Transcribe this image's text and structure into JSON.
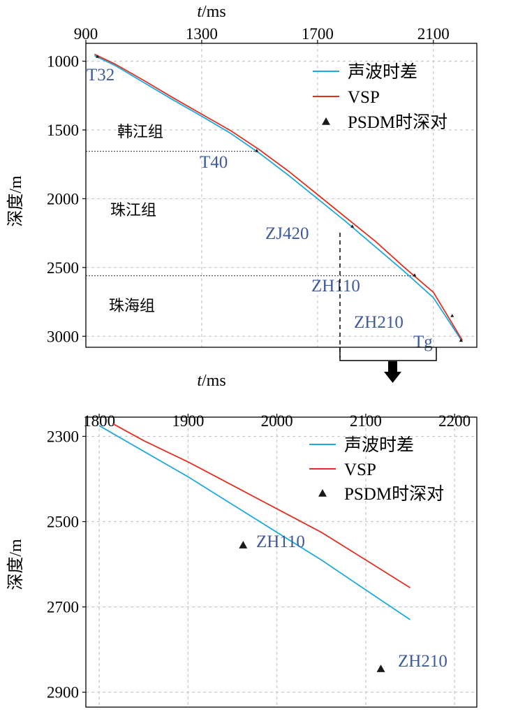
{
  "colors": {
    "sonic": "#1fa8e0",
    "vsp": "#e03020",
    "marker": "#1a1a1a",
    "annotation": "#3f5a9b",
    "boundary": "#555555"
  },
  "chart_data": [
    {
      "type": "line",
      "xlabel": "t/ms",
      "ylabel": "深度/m",
      "xlim": [
        900,
        2250
      ],
      "ylim": [
        3080,
        870
      ],
      "x_ticks": [
        "900",
        "1300",
        "1700",
        "2100"
      ],
      "y_ticks": [
        "1000",
        "1500",
        "2000",
        "2500",
        "3000"
      ],
      "grid": true,
      "legend_position": "top-right",
      "legend": [
        "声波时差",
        "VSP",
        "PSDM时深对"
      ],
      "series": [
        {
          "name": "声波时差",
          "x": [
            930,
            1000,
            1100,
            1200,
            1300,
            1400,
            1500,
            1600,
            1700,
            1800,
            1900,
            2000,
            2100,
            2200
          ],
          "y": [
            960,
            1030,
            1155,
            1280,
            1400,
            1525,
            1670,
            1830,
            2000,
            2170,
            2350,
            2530,
            2720,
            3040
          ]
        },
        {
          "name": "VSP",
          "x": [
            930,
            1000,
            1100,
            1200,
            1300,
            1400,
            1500,
            1600,
            1700,
            1800,
            1900,
            2000,
            2100,
            2200
          ],
          "y": [
            950,
            1020,
            1140,
            1265,
            1385,
            1505,
            1645,
            1800,
            1970,
            2140,
            2310,
            2500,
            2680,
            3030
          ]
        }
      ],
      "markers": [
        {
          "x": 940,
          "y": 965
        },
        {
          "x": 1490,
          "y": 1650
        },
        {
          "x": 1820,
          "y": 2200
        },
        {
          "x": 2035,
          "y": 2555
        },
        {
          "x": 2165,
          "y": 2850
        },
        {
          "x": 2195,
          "y": 3030
        }
      ],
      "annotations": [
        "T32",
        "T40",
        "ZJ420",
        "ZH110",
        "ZH210",
        "Tg"
      ],
      "formations": [
        "韩江组",
        "珠江组",
        "珠海组"
      ],
      "formation_boundaries": [
        1655,
        2560
      ]
    },
    {
      "type": "line",
      "xlabel": "t/ms",
      "ylabel": "深度/m",
      "xlim": [
        1785,
        2225
      ],
      "ylim": [
        2935,
        2255
      ],
      "x_ticks": [
        "1800",
        "1900",
        "2000",
        "2100",
        "2200"
      ],
      "y_ticks": [
        "2300",
        "2500",
        "2700",
        "2900"
      ],
      "grid": true,
      "legend_position": "top-right",
      "legend": [
        "声波时差",
        "VSP",
        "PSDM时深对"
      ],
      "series": [
        {
          "name": "声波时差",
          "x": [
            1800,
            1850,
            1900,
            1950,
            2000,
            2050,
            2100,
            2150
          ],
          "y": [
            2275,
            2335,
            2395,
            2460,
            2525,
            2590,
            2660,
            2730
          ]
        },
        {
          "name": "VSP",
          "x": [
            1815,
            1850,
            1900,
            1950,
            2000,
            2050,
            2100,
            2150
          ],
          "y": [
            2270,
            2310,
            2360,
            2415,
            2470,
            2525,
            2590,
            2655
          ]
        }
      ],
      "markers": [
        {
          "x": 1962,
          "y": 2555
        },
        {
          "x": 2117,
          "y": 2845
        }
      ],
      "annotations": [
        "ZH110",
        "ZH210"
      ]
    }
  ]
}
